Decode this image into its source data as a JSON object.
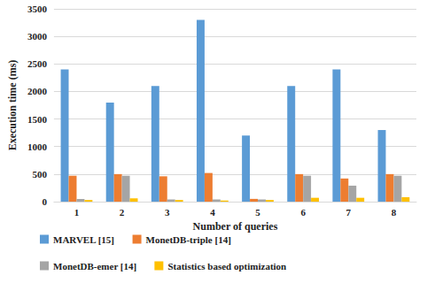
{
  "chart_data": {
    "type": "bar",
    "x_label": "Number of queries",
    "y_label": "Execution time (ms)",
    "categories": [
      "1",
      "2",
      "3",
      "4",
      "5",
      "6",
      "7",
      "8"
    ],
    "series": [
      {
        "name": "MARVEL [15]",
        "color": "#5b9bd5",
        "values": [
          2400,
          1800,
          2100,
          3300,
          1200,
          2100,
          2400,
          1300
        ]
      },
      {
        "name": "MonetDB-triple [14]",
        "color": "#ed7d31",
        "values": [
          470,
          500,
          460,
          520,
          50,
          500,
          420,
          500
        ]
      },
      {
        "name": "MonetDB-emer [14]",
        "color": "#a5a5a5",
        "values": [
          50,
          470,
          40,
          40,
          40,
          470,
          290,
          470
        ]
      },
      {
        "name": "Statistics based optimization",
        "color": "#ffc000",
        "values": [
          30,
          60,
          30,
          20,
          30,
          70,
          70,
          80
        ]
      }
    ],
    "ylim": [
      0,
      3500
    ],
    "yticks": [
      0,
      500,
      1000,
      1500,
      2000,
      2500,
      3000,
      3500
    ],
    "grid": true,
    "legend": "bottom"
  }
}
